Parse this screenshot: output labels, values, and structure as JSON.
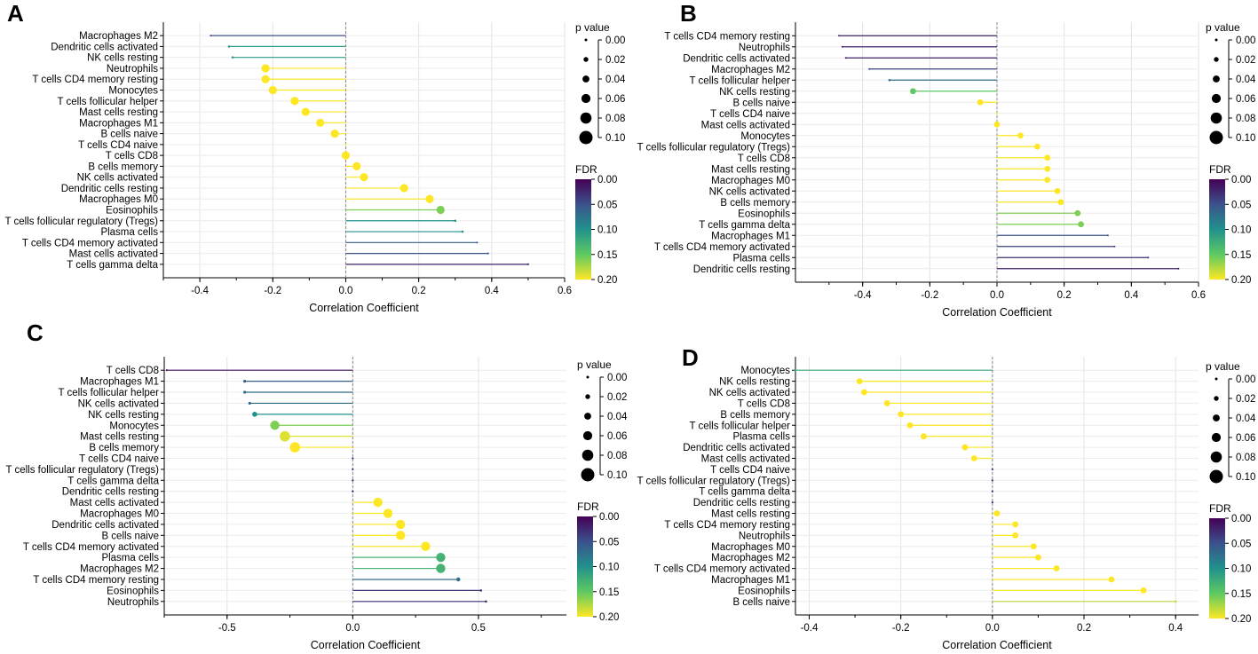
{
  "figure": {
    "xlabel": "Correlation Coefficient",
    "pvalue_legend_title": "p value",
    "pvalue_legend_values": [
      "0.00",
      "0.02",
      "0.04",
      "0.06",
      "0.08",
      "0.10"
    ],
    "fdr_legend_title": "FDR",
    "fdr_legend_values": [
      "0.00",
      "0.05",
      "0.10",
      "0.15",
      "0.20"
    ],
    "colormap": [
      "#440154",
      "#3b528b",
      "#21918c",
      "#5ec962",
      "#fde725"
    ]
  },
  "chart_data": [
    {
      "type": "lollipop",
      "panel": "A",
      "xlabel": "Correlation Coefficient",
      "xlim": [
        -0.5,
        0.6
      ],
      "xticks": [
        -0.4,
        -0.2,
        0.0,
        0.2,
        0.4,
        0.6
      ],
      "xtick_labels": [
        "-0.4",
        "-0.2",
        "0.0",
        "0.2",
        "0.4",
        "0.6"
      ],
      "categories": [
        "Macrophages M2",
        "Dendritic cells activated",
        "NK cells resting",
        "Neutrophils",
        "T cells CD4 memory resting",
        "Monocytes",
        "T cells follicular helper",
        "Mast cells resting",
        "Macrophages M1",
        "B cells naive",
        "T cells CD4 naive",
        "T cells CD8",
        "B cells memory",
        "NK cells activated",
        "Dendritic cells resting",
        "Macrophages M0",
        "Eosinophils",
        "T cells follicular regulatory (Tregs)",
        "Plasma cells",
        "T cells CD4 memory activated",
        "Mast cells activated",
        "T cells gamma delta"
      ],
      "values": [
        -0.37,
        -0.32,
        -0.31,
        -0.22,
        -0.22,
        -0.2,
        -0.14,
        -0.11,
        -0.07,
        -0.03,
        0.0,
        0.0,
        0.03,
        0.05,
        0.16,
        0.23,
        0.26,
        0.3,
        0.32,
        0.36,
        0.39,
        0.5
      ],
      "pvalue": [
        0.001,
        0.005,
        0.005,
        0.06,
        0.06,
        0.06,
        0.06,
        0.06,
        0.06,
        0.06,
        0.001,
        0.06,
        0.06,
        0.06,
        0.06,
        0.06,
        0.06,
        0.005,
        0.005,
        0.001,
        0.001,
        0.001
      ],
      "fdr": [
        0.05,
        0.11,
        0.11,
        0.2,
        0.2,
        0.2,
        0.2,
        0.2,
        0.2,
        0.2,
        0.2,
        0.2,
        0.2,
        0.2,
        0.2,
        0.2,
        0.16,
        0.1,
        0.1,
        0.06,
        0.05,
        0.02
      ]
    },
    {
      "type": "lollipop",
      "panel": "B",
      "xlabel": "Correlation Coefficient",
      "xlim": [
        -0.6,
        0.6
      ],
      "xticks": [
        -0.4,
        -0.2,
        0.0,
        0.2,
        0.4,
        0.6
      ],
      "xtick_labels": [
        "-0.4",
        "-0.2",
        "0.0",
        "0.2",
        "0.4",
        "0.6"
      ],
      "categories": [
        "T cells CD4 memory resting",
        "Neutrophils",
        "Dendritic cells activated",
        "Macrophages M2",
        "T cells follicular helper",
        "NK cells resting",
        "B cells naive",
        "T cells CD4 naive",
        "Mast cells activated",
        "Monocytes",
        "T cells follicular regulatory (Tregs)",
        "T cells CD8",
        "Mast cells resting",
        "Macrophages M0",
        "NK cells activated",
        "B cells memory",
        "Eosinophils",
        "T cells gamma delta",
        "Macrophages M1",
        "T cells CD4 memory activated",
        "Plasma cells",
        "Dendritic cells resting"
      ],
      "values": [
        -0.47,
        -0.46,
        -0.45,
        -0.38,
        -0.32,
        -0.25,
        -0.05,
        0.0,
        0.0,
        0.07,
        0.12,
        0.15,
        0.15,
        0.15,
        0.18,
        0.19,
        0.24,
        0.25,
        0.33,
        0.35,
        0.45,
        0.54
      ],
      "pvalue": [
        0.001,
        0.001,
        0.001,
        0.001,
        0.005,
        0.04,
        0.04,
        0.001,
        0.04,
        0.04,
        0.04,
        0.04,
        0.04,
        0.04,
        0.04,
        0.04,
        0.04,
        0.04,
        0.001,
        0.001,
        0.001,
        0.001
      ],
      "fdr": [
        0.02,
        0.02,
        0.02,
        0.04,
        0.07,
        0.15,
        0.2,
        0.2,
        0.2,
        0.2,
        0.2,
        0.2,
        0.2,
        0.2,
        0.2,
        0.2,
        0.16,
        0.16,
        0.05,
        0.04,
        0.03,
        0.02
      ]
    },
    {
      "type": "lollipop",
      "panel": "C",
      "xlabel": "Correlation Coefficient",
      "xlim": [
        -0.75,
        0.85
      ],
      "xticks": [
        -0.5,
        0.0,
        0.5
      ],
      "xtick_labels": [
        "-0.5",
        "0.0",
        "0.5"
      ],
      "categories": [
        "T cells CD8",
        "Macrophages M1",
        "T cells follicular helper",
        "NK cells activated",
        "NK cells resting",
        "Monocytes",
        "Mast cells resting",
        "B cells memory",
        "T cells CD4 naive",
        "T cells follicular regulatory (Tregs)",
        "T cells gamma delta",
        "Dendritic cells resting",
        "Mast cells activated",
        "Macrophages M0",
        "Dendritic cells activated",
        "B cells naive",
        "T cells CD4 memory activated",
        "Plasma cells",
        "Macrophages M2",
        "T cells CD4 memory resting",
        "Eosinophils",
        "Neutrophils"
      ],
      "values": [
        -0.74,
        -0.43,
        -0.43,
        -0.41,
        -0.39,
        -0.31,
        -0.27,
        -0.23,
        0.0,
        0.0,
        0.0,
        0.0,
        0.1,
        0.14,
        0.19,
        0.19,
        0.29,
        0.35,
        0.35,
        0.42,
        0.51,
        0.53
      ],
      "pvalue": [
        0.001,
        0.01,
        0.01,
        0.01,
        0.03,
        0.07,
        0.08,
        0.08,
        0.001,
        0.001,
        0.001,
        0.001,
        0.07,
        0.07,
        0.07,
        0.07,
        0.07,
        0.07,
        0.07,
        0.02,
        0.005,
        0.005
      ],
      "fdr": [
        0.01,
        0.06,
        0.07,
        0.07,
        0.1,
        0.16,
        0.19,
        0.2,
        0.01,
        0.01,
        0.01,
        0.01,
        0.2,
        0.2,
        0.2,
        0.2,
        0.2,
        0.13,
        0.13,
        0.07,
        0.03,
        0.03
      ]
    },
    {
      "type": "lollipop",
      "panel": "D",
      "xlabel": "Correlation Coefficient",
      "xlim": [
        -0.43,
        0.45
      ],
      "xticks": [
        -0.4,
        -0.2,
        0.0,
        0.2,
        0.4
      ],
      "xtick_labels": [
        "-0.4",
        "-0.2",
        "0.0",
        "0.2",
        "0.4"
      ],
      "categories": [
        "Monocytes",
        "NK cells resting",
        "NK cells activated",
        "T cells CD8",
        "B cells memory",
        "T cells follicular helper",
        "Plasma cells",
        "Dendritic cells activated",
        "Mast cells activated",
        "T cells CD4 naive",
        "T cells follicular regulatory (Tregs)",
        "T cells gamma delta",
        "Dendritic cells resting",
        "Mast cells resting",
        "T cells CD4 memory resting",
        "Neutrophils",
        "Macrophages M0",
        "Macrophages M2",
        "T cells CD4 memory activated",
        "Macrophages M1",
        "Eosinophils",
        "B cells naive"
      ],
      "values": [
        -0.43,
        -0.29,
        -0.28,
        -0.23,
        -0.2,
        -0.18,
        -0.15,
        -0.06,
        -0.04,
        0.0,
        0.0,
        0.0,
        0.0,
        0.01,
        0.05,
        0.05,
        0.09,
        0.1,
        0.14,
        0.26,
        0.33,
        0.4
      ],
      "pvalue": [
        0.005,
        0.04,
        0.04,
        0.04,
        0.04,
        0.04,
        0.04,
        0.04,
        0.04,
        0.001,
        0.001,
        0.001,
        0.001,
        0.04,
        0.04,
        0.04,
        0.04,
        0.04,
        0.04,
        0.04,
        0.04,
        0.005
      ],
      "fdr": [
        0.12,
        0.2,
        0.2,
        0.2,
        0.2,
        0.2,
        0.2,
        0.2,
        0.2,
        0.02,
        0.02,
        0.02,
        0.02,
        0.2,
        0.2,
        0.2,
        0.2,
        0.2,
        0.2,
        0.2,
        0.2,
        0.18
      ]
    }
  ]
}
